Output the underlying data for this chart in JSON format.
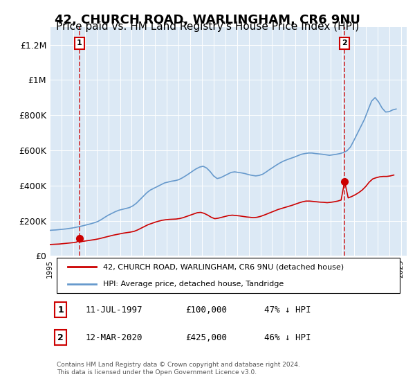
{
  "title": "42, CHURCH ROAD, WARLINGHAM, CR6 9NU",
  "subtitle": "Price paid vs. HM Land Registry's House Price Index (HPI)",
  "title_fontsize": 13,
  "subtitle_fontsize": 11,
  "background_color": "#dce9f5",
  "plot_bg_color": "#dce9f5",
  "ylim": [
    0,
    1300000
  ],
  "xlim_start": 1995.0,
  "xlim_end": 2025.5,
  "yticks": [
    0,
    200000,
    400000,
    600000,
    800000,
    1000000,
    1200000
  ],
  "ytick_labels": [
    "£0",
    "£200K",
    "£400K",
    "£600K",
    "£800K",
    "£1M",
    "£1.2M"
  ],
  "xticks": [
    1995,
    1996,
    1997,
    1998,
    1999,
    2000,
    2001,
    2002,
    2003,
    2004,
    2005,
    2006,
    2007,
    2008,
    2009,
    2010,
    2011,
    2012,
    2013,
    2014,
    2015,
    2016,
    2017,
    2018,
    2019,
    2020,
    2021,
    2022,
    2023,
    2024,
    2025
  ],
  "sale1_x": 1997.53,
  "sale1_y": 100000,
  "sale1_label": "1",
  "sale1_date": "11-JUL-1997",
  "sale1_price": "£100,000",
  "sale1_hpi": "47% ↓ HPI",
  "sale2_x": 2020.19,
  "sale2_y": 425000,
  "sale2_label": "2",
  "sale2_date": "12-MAR-2020",
  "sale2_price": "£425,000",
  "sale2_hpi": "46% ↓ HPI",
  "red_color": "#cc0000",
  "blue_color": "#6699cc",
  "legend_label_red": "42, CHURCH ROAD, WARLINGHAM, CR6 9NU (detached house)",
  "legend_label_blue": "HPI: Average price, detached house, Tandridge",
  "footer": "Contains HM Land Registry data © Crown copyright and database right 2024.\nThis data is licensed under the Open Government Licence v3.0.",
  "hpi_data_x": [
    1994.9,
    1995.2,
    1995.5,
    1995.8,
    1996.1,
    1996.4,
    1996.7,
    1997.0,
    1997.3,
    1997.6,
    1997.9,
    1998.2,
    1998.5,
    1998.8,
    1999.1,
    1999.4,
    1999.7,
    2000.0,
    2000.3,
    2000.6,
    2000.9,
    2001.2,
    2001.5,
    2001.8,
    2002.1,
    2002.4,
    2002.7,
    2003.0,
    2003.3,
    2003.6,
    2003.9,
    2004.2,
    2004.5,
    2004.8,
    2005.1,
    2005.4,
    2005.7,
    2006.0,
    2006.3,
    2006.6,
    2006.9,
    2007.2,
    2007.5,
    2007.8,
    2008.1,
    2008.4,
    2008.7,
    2009.0,
    2009.3,
    2009.6,
    2009.9,
    2010.2,
    2010.5,
    2010.8,
    2011.1,
    2011.4,
    2011.7,
    2012.0,
    2012.3,
    2012.6,
    2012.9,
    2013.2,
    2013.5,
    2013.8,
    2014.1,
    2014.4,
    2014.7,
    2015.0,
    2015.3,
    2015.6,
    2015.9,
    2016.2,
    2016.5,
    2016.8,
    2017.1,
    2017.4,
    2017.7,
    2018.0,
    2018.3,
    2018.6,
    2018.9,
    2019.2,
    2019.5,
    2019.8,
    2020.1,
    2020.4,
    2020.7,
    2021.0,
    2021.3,
    2021.6,
    2021.9,
    2022.2,
    2022.5,
    2022.8,
    2023.1,
    2023.4,
    2023.7,
    2024.0,
    2024.3,
    2024.6
  ],
  "hpi_data_y": [
    145000,
    147000,
    148000,
    150000,
    152000,
    154000,
    157000,
    160000,
    164000,
    168000,
    173000,
    178000,
    183000,
    189000,
    196000,
    207000,
    220000,
    232000,
    242000,
    252000,
    260000,
    265000,
    270000,
    275000,
    285000,
    300000,
    320000,
    340000,
    360000,
    375000,
    385000,
    395000,
    405000,
    415000,
    420000,
    425000,
    428000,
    433000,
    443000,
    455000,
    468000,
    482000,
    495000,
    505000,
    510000,
    500000,
    480000,
    455000,
    440000,
    445000,
    455000,
    465000,
    475000,
    478000,
    475000,
    472000,
    468000,
    462000,
    458000,
    455000,
    458000,
    465000,
    478000,
    492000,
    505000,
    518000,
    530000,
    540000,
    548000,
    555000,
    562000,
    570000,
    578000,
    582000,
    585000,
    585000,
    582000,
    580000,
    578000,
    575000,
    572000,
    575000,
    578000,
    582000,
    588000,
    598000,
    620000,
    658000,
    698000,
    738000,
    778000,
    830000,
    880000,
    900000,
    875000,
    840000,
    818000,
    820000,
    830000,
    835000
  ],
  "red_data_x": [
    1994.9,
    1995.2,
    1995.5,
    1995.8,
    1996.1,
    1996.4,
    1996.7,
    1997.0,
    1997.3,
    1997.53,
    1997.7,
    1998.0,
    1998.3,
    1998.6,
    1998.9,
    1999.2,
    1999.5,
    1999.8,
    2000.1,
    2000.4,
    2000.7,
    2001.0,
    2001.3,
    2001.6,
    2001.9,
    2002.2,
    2002.5,
    2002.8,
    2003.1,
    2003.4,
    2003.7,
    2004.0,
    2004.3,
    2004.6,
    2004.9,
    2005.2,
    2005.5,
    2005.8,
    2006.1,
    2006.4,
    2006.7,
    2007.0,
    2007.3,
    2007.6,
    2007.9,
    2008.2,
    2008.5,
    2008.8,
    2009.1,
    2009.4,
    2009.7,
    2010.0,
    2010.3,
    2010.6,
    2010.9,
    2011.2,
    2011.5,
    2011.8,
    2012.1,
    2012.4,
    2012.7,
    2013.0,
    2013.3,
    2013.6,
    2013.9,
    2014.2,
    2014.5,
    2014.8,
    2015.1,
    2015.4,
    2015.7,
    2016.0,
    2016.3,
    2016.6,
    2016.9,
    2017.2,
    2017.5,
    2017.8,
    2018.1,
    2018.4,
    2018.7,
    2019.0,
    2019.3,
    2019.6,
    2019.9,
    2020.19,
    2020.5,
    2020.8,
    2021.1,
    2021.4,
    2021.7,
    2022.0,
    2022.3,
    2022.6,
    2022.9,
    2023.2,
    2023.5,
    2023.8,
    2024.1,
    2024.4
  ],
  "red_data_y": [
    65000,
    66000,
    67000,
    68000,
    70000,
    72000,
    74000,
    76000,
    79000,
    100000,
    82000,
    85000,
    88000,
    91000,
    94000,
    98000,
    103000,
    108000,
    113000,
    118000,
    122000,
    126000,
    130000,
    133000,
    136000,
    140000,
    148000,
    158000,
    168000,
    178000,
    185000,
    192000,
    198000,
    203000,
    206000,
    208000,
    209000,
    210000,
    213000,
    218000,
    225000,
    232000,
    239000,
    246000,
    248000,
    242000,
    232000,
    220000,
    212000,
    215000,
    220000,
    225000,
    230000,
    232000,
    230000,
    228000,
    225000,
    222000,
    220000,
    218000,
    220000,
    225000,
    232000,
    240000,
    248000,
    256000,
    264000,
    270000,
    276000,
    282000,
    288000,
    295000,
    302000,
    308000,
    312000,
    312000,
    310000,
    308000,
    306000,
    305000,
    303000,
    305000,
    308000,
    312000,
    318000,
    425000,
    330000,
    338000,
    348000,
    360000,
    375000,
    395000,
    420000,
    438000,
    445000,
    450000,
    452000,
    452000,
    455000,
    460000
  ]
}
